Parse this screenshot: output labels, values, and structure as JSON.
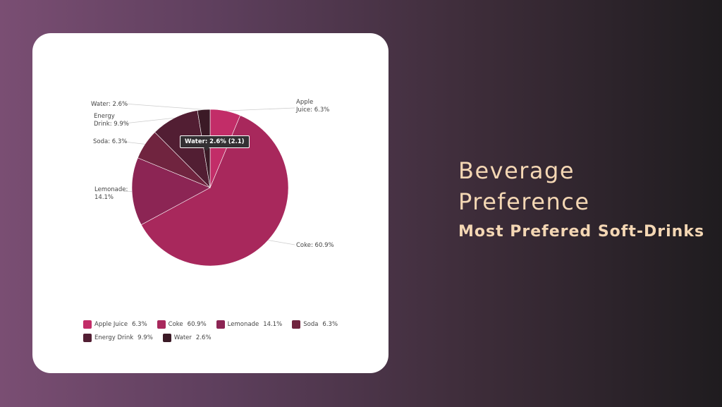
{
  "title_lines": [
    "Beverage",
    "Preference"
  ],
  "subtitle": "Most Prefered Soft-Drinks",
  "tooltip": "Water: 2.6% (2.1)",
  "chart_data": {
    "type": "pie",
    "categories": [
      "Apple Juice",
      "Coke",
      "Lemonade",
      "Soda",
      "Energy Drink",
      "Water"
    ],
    "values": [
      6.3,
      60.9,
      14.1,
      6.3,
      9.9,
      2.6
    ],
    "labels": [
      "Apple\nJuice: 6.3%",
      "Coke: 60.9%",
      "Lemonade:\n14.1%",
      "Soda: 6.3%",
      "Energy\nDrink: 9.9%",
      "Water: 2.6%"
    ],
    "legend_values": [
      "6.3%",
      "60.9%",
      "14.1%",
      "6.3%",
      "9.9%",
      "2.6%"
    ],
    "colors": [
      "#c22d68",
      "#a8285c",
      "#8c2554",
      "#70243f",
      "#521e33",
      "#3b1a26"
    ],
    "legend": "bottom"
  }
}
